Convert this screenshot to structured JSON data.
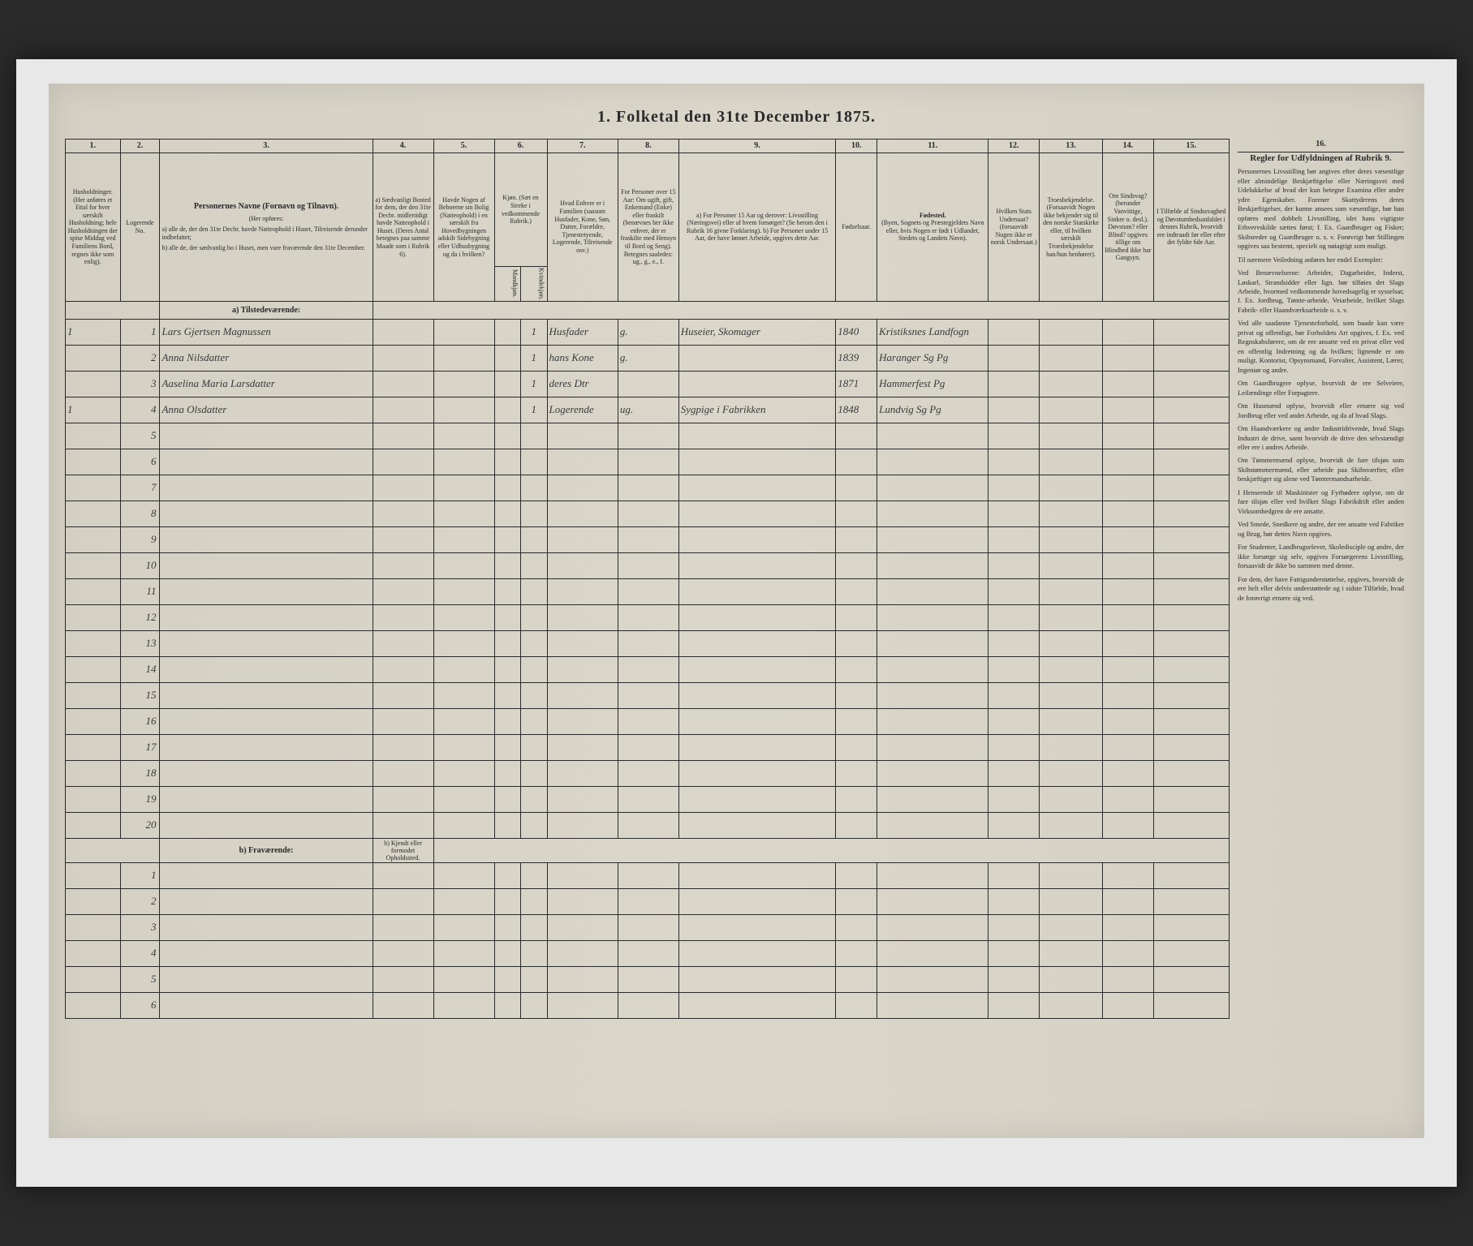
{
  "title": "1. Folketal den 31te December 1875.",
  "columnNumbers": [
    "1.",
    "2.",
    "3.",
    "4.",
    "5.",
    "6.",
    "7.",
    "8.",
    "9.",
    "10.",
    "11.",
    "12.",
    "13.",
    "14.",
    "15.",
    "16."
  ],
  "headers": {
    "c1": "Husholdninger. (Her anføres et Ettal for hver særskilt Husholdning; hele Husholdningen der spise Middag ved Familiens Bord, regnes ikke som enlig).",
    "c2_label": "Logerende No.",
    "c3_title": "Personernes Navne (Fornavn og Tilnavn).",
    "c3_sub": "(Her opføres:",
    "c3_a": "a) alle de, der den 31te Decbr. havde Natteophold i Huset, Tilreisende derunder indbefattet;",
    "c3_b": "b) alle de, der sædvanlig bo i Huset, men vare fraværende den 31te December.",
    "c4": "a) Sædvanligt Bosted for dem, der den 31te Decbr. midlertidigt havde Natteophold i Huset. (Deres Antal betegnes paa samme Maade som i Rubrik 6).",
    "c5": "Havde Nogen af Beboerne sin Bolig (Natteophold) i en særskilt fra Hovedbygningen adskilt Sidebygning eller Udhusbygning og da i hvilken?",
    "c6": "Kjøn. (Sæt en Streke i vedkommende Rubrik.)",
    "c6a": "Mandkjøn.",
    "c6b": "Kvindekjøn.",
    "c7": "Hvad Enhver er i Familien (saasom Husfader, Kone, Søn, Datter, Forældre, Tjenestetyende, Logerende, Tilreisende osv.)",
    "c8": "For Personer over 15 Aar: Om ugift, gift, Enkemand (Enke) eller fraskilt (benævnes her ikke enhver, der er fraskilte med Hensyn til Bord og Seng). Betegnes saaledes: ug., g., e., f.",
    "c9": "a) For Personer 15 Aar og derover: Livsstilling (Næringsvei) eller af hvem forsørget? (Se herom den i Rubrik 16 givne Forklaring). b) For Personer under 15 Aar, der have lønnet Arbeide, opgives dette Aar.",
    "c10": "Fødselsaar.",
    "c11_title": "Fødested.",
    "c11_sub": "(Byen, Sognets og Præstegjeldets Navn eller, hvis Nogen er født i Udlandet, Stedets og Landets Navn).",
    "c12": "Hvilken Stats Undersaat? (forsaavidt Nogen ikke er norsk Undersaat.)",
    "c13": "Troesbekjendelse. (Forsaavidt Nogen ikke bekjender sig til den norske Statskirke eller, til hvilken særskilt Troesbekjendelse han/hun henhører).",
    "c14": "Om Sindsvag? (herunder Vanvittige, Sinker o. desl.). Døvstum? eller Blind? opgives tillige om Blindhed ikke har Gangsyn.",
    "c15": "I Tilfælde af Sindssvaghed og Døvstumhedsanfaldet i dennes Rubrik, hvorvidt ere indtraadt før eller efter det fyldte 6de Aar.",
    "c16_title": "Regler for Udfyldningen af Rubrik 9."
  },
  "sectionA": "a) Tilstedeværende:",
  "sectionB": "b) Fraværende:",
  "sectionB_col4": "b) Kjendt eller formodet Opholdssted.",
  "rows": [
    {
      "n": "1",
      "hh": "1",
      "name": "Lars Gjertsen Magnussen",
      "sex": "1",
      "fam": "Husfader",
      "civ": "g.",
      "occ": "Huseier, Skomager",
      "year": "1840",
      "place": "Kristiksnes Landfogn"
    },
    {
      "n": "2",
      "hh": "",
      "name": "Anna Nilsdatter",
      "sex": "1",
      "fam": "hans Kone",
      "civ": "g.",
      "occ": "",
      "year": "1839",
      "place": "Haranger Sg Pg"
    },
    {
      "n": "3",
      "hh": "",
      "name": "Aaselina Maria Larsdatter",
      "sex": "1",
      "fam": "deres Dtr",
      "civ": "",
      "occ": "",
      "year": "1871",
      "place": "Hammerfest Pg"
    },
    {
      "n": "4",
      "hh": "1",
      "name": "Anna Olsdatter",
      "sex": "1",
      "fam": "Logerende",
      "civ": "ug.",
      "occ": "Sygpige i Fabrikken",
      "year": "1848",
      "place": "Lundvig Sg Pg"
    }
  ],
  "emptyRowsA": [
    "5",
    "6",
    "7",
    "8",
    "9",
    "10",
    "11",
    "12",
    "13",
    "14",
    "15",
    "16",
    "17",
    "18",
    "19",
    "20"
  ],
  "emptyRowsB": [
    "1",
    "2",
    "3",
    "4",
    "5",
    "6"
  ],
  "instructionsTitle": "Regler for Udfyldningen af Rubrik 9.",
  "instructions": [
    "Personernes Livsstilling bør angives efter deres væsentlige eller almindelige Beskjæftigelse eller Næringsvei med Udelukkelse af hvad der kun betegne Examina eller andre ydre Egenskaber. Forener Skattyderens deres Beskjæftigelser, der kunne ansees som væsentlige, bør han opføres med dobbelt Livsstilling, idet hans vigtigste Erhvervskilde sættes først; f. Ex. Gaardbruger og Fisker; Skibsreder og Gaardbruger o. s. v. Forøvrigt bør Stillingen opgives saa bestemt, specielt og nøiagtigt som muligt.",
    "Til nærmere Veiledning anføres her endel Exempler:",
    "Ved Benævnelserne: Arbeider, Dagarbeider, Inderst, Løskarl, Strandsidder eller lign. bør tilføies det Slags Arbeide, hvormed vedkommende hovedsagelig er sysselsat; f. Ex. Jordbrug, Tømte-arbeide, Veiarbeide, hvilket Slags Fabrik- eller Haandværksarbeide o. s. v.",
    "Ved alle saadanne Tjenesteforhold, som baade kan være privat og offentligt, bør Forholdets Art opgives, f. Ex. ved Regnskabsførere, om de ere ansatte ved en privat eller ved en offentlig Indretning og da hvilken; lignende er om muligt. Kontorist, Opsynsmand, Forvalter, Assistent, Lærer, Ingeniør og andre.",
    "Om Gaardbrugere oplyse, hvorvidt de ere Selveiere, Leilændinge eller Forpagtere.",
    "Om Husmænd oplyse, hvorvidt eller ernære sig ved Jordbrug eller ved andet Arbeide, og da af hvad Slags.",
    "Om Haandværkere og andre Industridrivende, hvad Slags Industri de drive, samt hvorvidt de drive den selvstændigt eller ere i andres Arbeide.",
    "Om Tømmermænd oplyse, hvorvidt de fare tilsjøs som Skibstømmermænd, eller arbeide paa Skibsværfter, eller beskjæftiger sig alene ved Tømtermandsarbeide.",
    "I Henseende til Maskinister og Fyrbødere oplyse, om de fare tilsjøs eller ved hvilket Slags Fabrikdrift eller anden Virksomhedgren de ere ansatte.",
    "Ved Smede, Snedkere og andre, der ere ansatte ved Fabriker og Brug, bør dettes Navn opgives.",
    "For Studenter, Landbrugselever, Skoledisciple og andre, der ikke forsørge sig selv, opgives Forsørgerens Livsstilling, forsaavidt de ikke bo sammen med denne.",
    "For dem, der have Fattigunderstøttelse, opgives, hvorvidt de ere helt eller delvis understøttede og i sidste Tilfælde, hvad de forøvrigt ernære sig ved."
  ]
}
